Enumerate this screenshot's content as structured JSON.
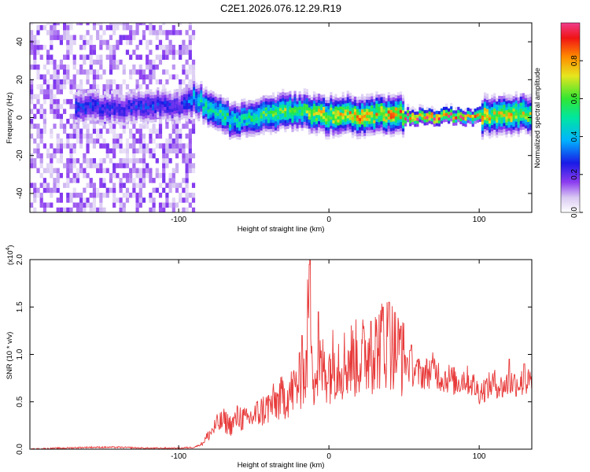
{
  "title": "C2E1.2026.076.12.29.R19",
  "colors": {
    "snr_line": "#e83a3a",
    "frame": "#000000"
  },
  "chart_data": [
    {
      "type": "heatmap",
      "title": "C2E1.2026.076.12.29.R19",
      "xlabel": "Height of straight line (km)",
      "ylabel": "Frequency (Hz)",
      "xlim": [
        -199,
        135
      ],
      "ylim": [
        -50,
        50
      ],
      "x_ticks": [
        -100,
        0,
        100
      ],
      "x_tick_labels": [
        "-100",
        "0",
        "100"
      ],
      "y_ticks": [
        -40,
        -20,
        0,
        20,
        40
      ],
      "y_tick_labels": [
        "-40",
        "-20",
        "0",
        "20",
        "40"
      ],
      "colorbar": {
        "label": "Normalized spectral amplitude",
        "range": [
          0,
          1
        ],
        "ticks": [
          0.0,
          0.2,
          0.4,
          0.6,
          0.8
        ],
        "tick_labels": [
          "0.0",
          "0.2",
          "0.4",
          "0.6",
          "0.8"
        ]
      },
      "noise_region_x": [
        -199,
        -90
      ],
      "ridge": {
        "x": [
          -163,
          -140,
          -120,
          -100,
          -90,
          -80,
          -70,
          -60,
          -50,
          -40,
          -30,
          -20,
          -10,
          0,
          10,
          20,
          30,
          40,
          50,
          60,
          70,
          80,
          90,
          100,
          110,
          120,
          135
        ],
        "freq_hz": [
          5,
          4,
          6,
          5,
          10,
          4,
          -1,
          -2,
          0,
          1,
          2,
          3,
          1,
          0,
          1,
          0,
          1,
          1,
          0,
          0,
          0,
          0,
          0,
          0,
          0,
          0,
          2
        ],
        "peak_amplitude": [
          0.3,
          0.25,
          0.3,
          0.25,
          0.45,
          0.55,
          0.6,
          0.5,
          0.6,
          0.65,
          0.7,
          0.6,
          0.75,
          0.8,
          0.8,
          0.85,
          0.8,
          0.85,
          0.9,
          1.0,
          1.0,
          1.0,
          0.9,
          0.85,
          0.75,
          0.8,
          0.7
        ]
      }
    },
    {
      "type": "line",
      "xlabel": "Height of straight line (km)",
      "ylabel": "SNR (10 * v/v)",
      "y_multiplier": "(x10",
      "y_multiplier_exp": "4",
      "y_multiplier_close": ")",
      "xlim": [
        -199,
        135
      ],
      "ylim": [
        0,
        2.0
      ],
      "x_ticks": [
        -100,
        0,
        100
      ],
      "x_tick_labels": [
        "-100",
        "0",
        "100"
      ],
      "y_ticks": [
        0.0,
        0.5,
        1.0,
        1.5,
        2.0
      ],
      "y_tick_labels": [
        "0.0",
        "0.5",
        "1.0",
        "1.5",
        "2.0"
      ],
      "series": [
        {
          "name": "SNR",
          "x": [
            -199,
            -180,
            -160,
            -140,
            -120,
            -100,
            -90,
            -85,
            -80,
            -75,
            -70,
            -65,
            -60,
            -55,
            -50,
            -45,
            -40,
            -35,
            -30,
            -25,
            -20,
            -15,
            -13,
            -10,
            -5,
            0,
            5,
            10,
            15,
            20,
            25,
            30,
            35,
            40,
            45,
            50,
            55,
            60,
            65,
            70,
            75,
            80,
            85,
            90,
            95,
            100,
            105,
            110,
            115,
            120,
            125,
            130,
            135
          ],
          "values": [
            0.0,
            0.01,
            0.02,
            0.02,
            0.01,
            0.01,
            0.02,
            0.05,
            0.15,
            0.25,
            0.3,
            0.25,
            0.35,
            0.3,
            0.35,
            0.4,
            0.45,
            0.5,
            0.55,
            0.6,
            0.7,
            0.8,
            1.95,
            0.75,
            0.85,
            0.85,
            0.95,
            0.9,
            0.95,
            0.95,
            1.0,
            1.05,
            1.1,
            1.15,
            1.05,
            0.95,
            0.85,
            0.8,
            0.8,
            0.85,
            0.75,
            0.75,
            0.7,
            0.75,
            0.7,
            0.6,
            0.65,
            0.7,
            0.65,
            0.7,
            0.7,
            0.7,
            0.7
          ],
          "spikes": [
            {
              "x": -13,
              "value": 1.95
            },
            {
              "x": -18,
              "value": 1.2
            },
            {
              "x": -7,
              "value": 1.45
            },
            {
              "x": 28,
              "value": 1.35
            },
            {
              "x": 36,
              "value": 1.5
            },
            {
              "x": 40,
              "value": 1.55
            },
            {
              "x": 48,
              "value": 1.3
            },
            {
              "x": 55,
              "value": 1.1
            },
            {
              "x": 120,
              "value": 0.95
            },
            {
              "x": 130,
              "value": 0.9
            }
          ]
        }
      ]
    }
  ]
}
